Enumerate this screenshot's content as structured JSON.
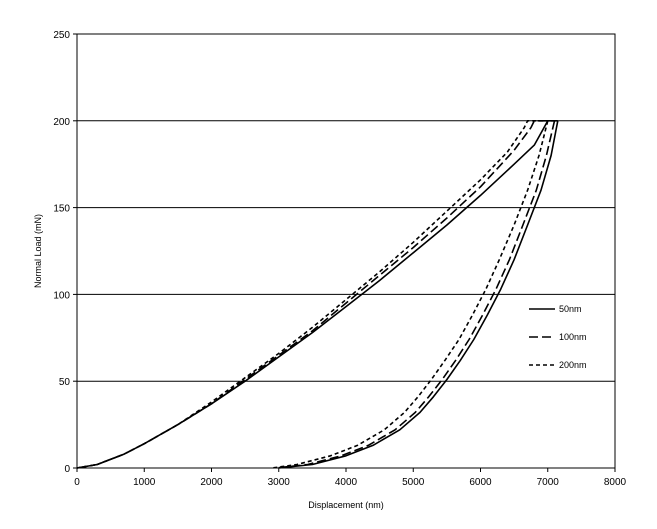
{
  "chart_data": {
    "type": "line",
    "title": "",
    "xlabel": "Displacement (nm)",
    "ylabel": "Normal Load (mN)",
    "xlim": [
      0,
      8000
    ],
    "ylim": [
      0,
      250
    ],
    "xticks": [
      0,
      1000,
      2000,
      3000,
      4000,
      5000,
      6000,
      7000,
      8000
    ],
    "yticks": [
      0,
      50,
      100,
      150,
      200,
      250
    ],
    "grid": "horizontal",
    "legend_position": "right",
    "series": [
      {
        "name": "50nm",
        "style": "solid",
        "loading": [
          [
            0,
            0
          ],
          [
            300,
            2
          ],
          [
            700,
            8
          ],
          [
            1000,
            14
          ],
          [
            1500,
            25
          ],
          [
            2000,
            37
          ],
          [
            2500,
            50
          ],
          [
            3000,
            64
          ],
          [
            3500,
            78
          ],
          [
            4000,
            93
          ],
          [
            4500,
            108
          ],
          [
            5000,
            124
          ],
          [
            5500,
            140
          ],
          [
            6000,
            157
          ],
          [
            6500,
            175
          ],
          [
            6800,
            186
          ],
          [
            7000,
            200
          ],
          [
            7150,
            200
          ]
        ],
        "unloading": [
          [
            7150,
            200
          ],
          [
            7050,
            180
          ],
          [
            6900,
            160
          ],
          [
            6700,
            140
          ],
          [
            6500,
            120
          ],
          [
            6300,
            103
          ],
          [
            6100,
            88
          ],
          [
            5900,
            74
          ],
          [
            5700,
            62
          ],
          [
            5500,
            51
          ],
          [
            5300,
            41
          ],
          [
            5100,
            32
          ],
          [
            4800,
            22
          ],
          [
            4400,
            13
          ],
          [
            4000,
            7
          ],
          [
            3500,
            2
          ],
          [
            3000,
            0
          ]
        ]
      },
      {
        "name": "100nm",
        "style": "dashed",
        "loading": [
          [
            0,
            0
          ],
          [
            300,
            2
          ],
          [
            700,
            8
          ],
          [
            1000,
            14
          ],
          [
            1500,
            25
          ],
          [
            2000,
            37
          ],
          [
            2500,
            51
          ],
          [
            3000,
            65
          ],
          [
            3500,
            79
          ],
          [
            4000,
            95
          ],
          [
            4500,
            111
          ],
          [
            5000,
            127
          ],
          [
            5500,
            144
          ],
          [
            6000,
            162
          ],
          [
            6500,
            183
          ],
          [
            6750,
            196
          ],
          [
            6800,
            200
          ],
          [
            7100,
            200
          ]
        ],
        "unloading": [
          [
            7100,
            200
          ],
          [
            6980,
            180
          ],
          [
            6830,
            160
          ],
          [
            6630,
            140
          ],
          [
            6430,
            120
          ],
          [
            6230,
            103
          ],
          [
            6030,
            88
          ],
          [
            5830,
            74
          ],
          [
            5630,
            62
          ],
          [
            5430,
            51
          ],
          [
            5230,
            41
          ],
          [
            5030,
            32
          ],
          [
            4730,
            22
          ],
          [
            4330,
            13
          ],
          [
            3930,
            7
          ],
          [
            3430,
            2
          ],
          [
            2950,
            0
          ]
        ]
      },
      {
        "name": "200nm",
        "style": "dotted",
        "loading": [
          [
            0,
            0
          ],
          [
            300,
            2
          ],
          [
            700,
            8
          ],
          [
            1000,
            14
          ],
          [
            1500,
            25
          ],
          [
            2000,
            38
          ],
          [
            2500,
            52
          ],
          [
            3000,
            66
          ],
          [
            3500,
            81
          ],
          [
            4000,
            97
          ],
          [
            4500,
            113
          ],
          [
            5000,
            130
          ],
          [
            5500,
            148
          ],
          [
            6000,
            166
          ],
          [
            6400,
            182
          ],
          [
            6650,
            196
          ],
          [
            6700,
            200
          ],
          [
            7000,
            200
          ]
        ],
        "unloading": [
          [
            7000,
            200
          ],
          [
            6870,
            180
          ],
          [
            6700,
            160
          ],
          [
            6500,
            140
          ],
          [
            6280,
            120
          ],
          [
            6080,
            103
          ],
          [
            5880,
            88
          ],
          [
            5680,
            74
          ],
          [
            5470,
            62
          ],
          [
            5270,
            51
          ],
          [
            5070,
            41
          ],
          [
            4870,
            32
          ],
          [
            4570,
            22
          ],
          [
            4170,
            13
          ],
          [
            3770,
            7
          ],
          [
            3270,
            2
          ],
          [
            2900,
            0
          ]
        ]
      }
    ]
  }
}
